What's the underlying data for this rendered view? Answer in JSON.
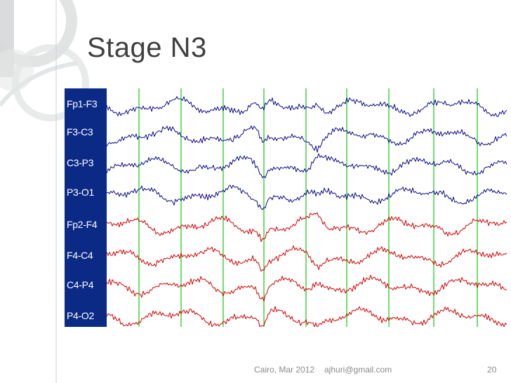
{
  "slide": {
    "title": "Stage N3"
  },
  "eeg": {
    "channels": [
      {
        "label": "Fp1-F3",
        "color": "#0a0a8c"
      },
      {
        "label": "F3-C3",
        "color": "#0a0a8c"
      },
      {
        "label": "C3-P3",
        "color": "#0a0a8c"
      },
      {
        "label": "P3-O1",
        "color": "#0a0a8c"
      },
      {
        "label": "Fp2-F4",
        "color": "#d40000"
      },
      {
        "label": "F4-C4",
        "color": "#d40000"
      },
      {
        "label": "C4-P4",
        "color": "#d40000"
      },
      {
        "label": "P4-O2",
        "color": "#d40000"
      }
    ],
    "label_panel_color": "#0b2a86",
    "gridline_color": "#22cc22"
  },
  "footer": {
    "location_date": "Cairo, Mar 2012",
    "email": "ajhuri@gmail.com",
    "page_number": "20"
  }
}
